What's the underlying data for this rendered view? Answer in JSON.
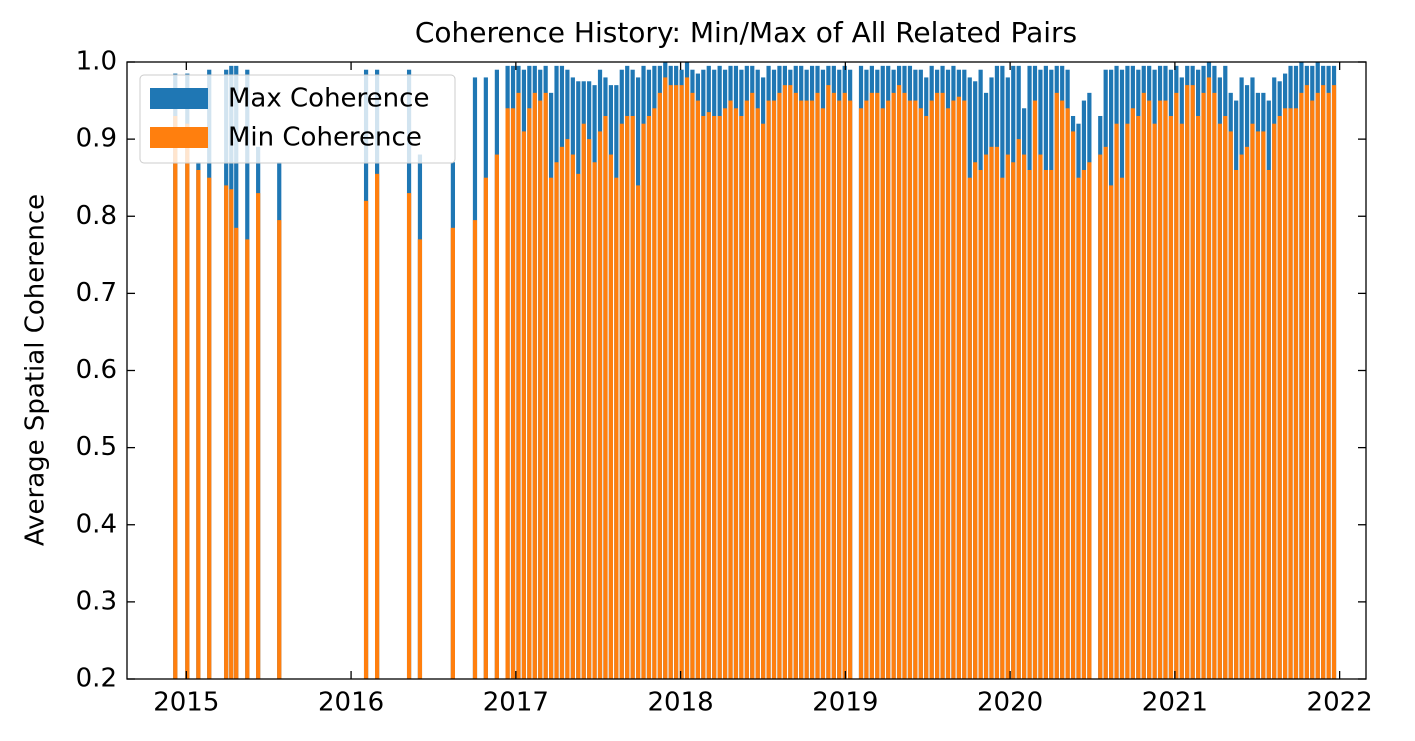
{
  "chart_data": {
    "type": "bar",
    "title": "Coherence History: Min/Max of All Related Pairs",
    "ylabel": "Average Spatial Coherence",
    "x": [
      2014.933,
      2015.006,
      2015.073,
      2015.139,
      2015.242,
      2015.273,
      2015.303,
      2015.37,
      2015.436,
      2015.564,
      2016.091,
      2016.158,
      2016.352,
      2016.418,
      2016.618,
      2016.752,
      2016.818,
      2016.885,
      2016.95,
      2016.983,
      2017.016,
      2017.049,
      2017.082,
      2017.115,
      2017.148,
      2017.181,
      2017.214,
      2017.247,
      2017.28,
      2017.313,
      2017.346,
      2017.379,
      2017.412,
      2017.445,
      2017.478,
      2017.511,
      2017.544,
      2017.577,
      2017.61,
      2017.643,
      2017.676,
      2017.709,
      2017.742,
      2017.775,
      2017.808,
      2017.841,
      2017.874,
      2017.907,
      2017.94,
      2017.973,
      2018.006,
      2018.039,
      2018.072,
      2018.105,
      2018.138,
      2018.171,
      2018.204,
      2018.237,
      2018.27,
      2018.303,
      2018.336,
      2018.369,
      2018.402,
      2018.435,
      2018.468,
      2018.501,
      2018.534,
      2018.567,
      2018.6,
      2018.633,
      2018.666,
      2018.699,
      2018.732,
      2018.765,
      2018.798,
      2018.831,
      2018.864,
      2018.897,
      2018.93,
      2018.963,
      2018.996,
      2019.029,
      2019.095,
      2019.128,
      2019.161,
      2019.194,
      2019.227,
      2019.26,
      2019.293,
      2019.326,
      2019.359,
      2019.392,
      2019.425,
      2019.458,
      2019.491,
      2019.524,
      2019.557,
      2019.59,
      2019.623,
      2019.656,
      2019.689,
      2019.722,
      2019.755,
      2019.788,
      2019.821,
      2019.854,
      2019.887,
      2019.92,
      2019.953,
      2019.986,
      2020.019,
      2020.052,
      2020.085,
      2020.118,
      2020.151,
      2020.184,
      2020.217,
      2020.25,
      2020.283,
      2020.316,
      2020.349,
      2020.382,
      2020.415,
      2020.448,
      2020.481,
      2020.547,
      2020.58,
      2020.613,
      2020.646,
      2020.679,
      2020.712,
      2020.745,
      2020.778,
      2020.811,
      2020.844,
      2020.877,
      2020.91,
      2020.943,
      2020.976,
      2021.009,
      2021.042,
      2021.075,
      2021.108,
      2021.141,
      2021.174,
      2021.207,
      2021.24,
      2021.273,
      2021.306,
      2021.339,
      2021.372,
      2021.405,
      2021.438,
      2021.471,
      2021.504,
      2021.537,
      2021.57,
      2021.603,
      2021.636,
      2021.669,
      2021.702,
      2021.735,
      2021.768,
      2021.801,
      2021.834,
      2021.867,
      2021.9,
      2021.933,
      2021.966
    ],
    "series": [
      {
        "name": "Max Coherence",
        "color": "#1f77b4",
        "values": [
          0.985,
          0.985,
          0.87,
          0.99,
          0.99,
          0.995,
          0.995,
          0.99,
          0.89,
          0.87,
          0.99,
          0.99,
          0.99,
          0.88,
          0.87,
          0.98,
          0.98,
          0.99,
          0.995,
          0.995,
          0.995,
          0.99,
          0.995,
          0.995,
          0.99,
          0.995,
          0.96,
          0.995,
          0.995,
          0.99,
          0.98,
          0.975,
          0.975,
          0.975,
          0.97,
          0.99,
          0.98,
          0.97,
          0.97,
          0.99,
          0.995,
          0.99,
          0.98,
          0.995,
          0.99,
          0.995,
          0.995,
          1.0,
          0.995,
          0.995,
          0.99,
          1.0,
          0.99,
          0.985,
          0.99,
          0.995,
          0.99,
          0.995,
          0.99,
          0.995,
          0.995,
          0.99,
          0.995,
          0.995,
          0.99,
          0.98,
          0.995,
          0.99,
          0.995,
          0.995,
          0.99,
          0.995,
          0.995,
          0.99,
          0.995,
          0.995,
          0.99,
          0.995,
          0.995,
          0.99,
          0.995,
          0.99,
          0.995,
          0.99,
          0.995,
          0.99,
          0.995,
          0.995,
          0.99,
          0.995,
          0.995,
          0.995,
          0.99,
          0.99,
          0.98,
          0.995,
          0.99,
          0.995,
          0.99,
          0.995,
          0.99,
          0.99,
          0.98,
          0.975,
          0.99,
          0.96,
          0.98,
          0.995,
          0.995,
          0.98,
          0.995,
          0.995,
          0.94,
          0.995,
          0.995,
          0.99,
          0.995,
          0.99,
          0.995,
          0.995,
          0.99,
          0.93,
          0.92,
          0.95,
          0.96,
          0.93,
          0.99,
          0.99,
          0.995,
          0.99,
          0.995,
          0.995,
          0.99,
          0.995,
          0.995,
          0.99,
          0.995,
          0.995,
          0.99,
          0.995,
          0.98,
          0.995,
          0.995,
          0.99,
          0.995,
          1.0,
          0.995,
          0.98,
          0.995,
          0.96,
          0.95,
          0.98,
          0.97,
          0.98,
          0.96,
          0.96,
          0.95,
          0.98,
          0.975,
          0.985,
          0.995,
          0.995,
          1.0,
          0.995,
          0.995,
          1.0,
          0.995,
          0.995,
          0.995
        ]
      },
      {
        "name": "Min Coherence",
        "color": "#ff7f0e",
        "values": [
          0.93,
          0.92,
          0.86,
          0.85,
          0.84,
          0.835,
          0.785,
          0.77,
          0.83,
          0.795,
          0.82,
          0.855,
          0.83,
          0.77,
          0.785,
          0.795,
          0.85,
          0.88,
          0.94,
          0.94,
          0.96,
          0.91,
          0.94,
          0.96,
          0.95,
          0.96,
          0.85,
          0.87,
          0.89,
          0.9,
          0.88,
          0.855,
          0.92,
          0.9,
          0.87,
          0.91,
          0.93,
          0.88,
          0.85,
          0.92,
          0.93,
          0.93,
          0.84,
          0.92,
          0.93,
          0.94,
          0.96,
          0.98,
          0.97,
          0.97,
          0.97,
          0.98,
          0.96,
          0.95,
          0.93,
          0.935,
          0.93,
          0.93,
          0.94,
          0.95,
          0.94,
          0.93,
          0.95,
          0.96,
          0.94,
          0.92,
          0.95,
          0.95,
          0.96,
          0.97,
          0.97,
          0.96,
          0.95,
          0.95,
          0.95,
          0.96,
          0.94,
          0.97,
          0.96,
          0.95,
          0.96,
          0.95,
          0.94,
          0.95,
          0.96,
          0.96,
          0.94,
          0.95,
          0.96,
          0.97,
          0.96,
          0.95,
          0.95,
          0.94,
          0.93,
          0.95,
          0.96,
          0.96,
          0.94,
          0.95,
          0.955,
          0.95,
          0.85,
          0.87,
          0.86,
          0.88,
          0.89,
          0.89,
          0.85,
          0.88,
          0.87,
          0.9,
          0.88,
          0.86,
          0.95,
          0.88,
          0.86,
          0.86,
          0.96,
          0.95,
          0.94,
          0.91,
          0.85,
          0.86,
          0.87,
          0.88,
          0.89,
          0.84,
          0.92,
          0.85,
          0.92,
          0.94,
          0.93,
          0.96,
          0.95,
          0.92,
          0.95,
          0.95,
          0.93,
          0.96,
          0.92,
          0.97,
          0.97,
          0.93,
          0.96,
          0.98,
          0.96,
          0.92,
          0.93,
          0.91,
          0.86,
          0.88,
          0.89,
          0.92,
          0.91,
          0.91,
          0.86,
          0.92,
          0.93,
          0.94,
          0.94,
          0.94,
          0.96,
          0.97,
          0.95,
          0.96,
          0.97,
          0.96,
          0.97
        ]
      }
    ],
    "xlim": [
      2014.64,
      2022.16
    ],
    "ylim": [
      0.2,
      1.0
    ],
    "xticks": [
      2015,
      2016,
      2017,
      2018,
      2019,
      2020,
      2021,
      2022
    ],
    "yticks": [
      0.2,
      0.3,
      0.4,
      0.5,
      0.6,
      0.7,
      0.8,
      0.9,
      {
        "value": 1.0,
        "label": "1.0"
      }
    ],
    "legend": "upper left"
  }
}
